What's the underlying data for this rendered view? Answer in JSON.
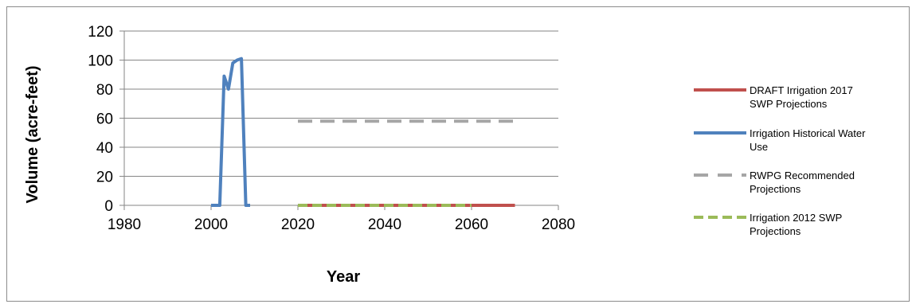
{
  "chart_data": {
    "type": "line",
    "title": "",
    "xlabel": "Year",
    "ylabel": "Volume (acre-feet)",
    "xlim": [
      1980,
      2080
    ],
    "ylim": [
      0,
      120
    ],
    "x_ticks": [
      "1980",
      "2000",
      "2020",
      "2040",
      "2060",
      "2080"
    ],
    "y_ticks": [
      "0",
      "20",
      "40",
      "60",
      "80",
      "100",
      "120"
    ],
    "grid": "horizontal",
    "legend_position": "right",
    "series": [
      {
        "name": "DRAFT Irrigation 2017 SWP Projections",
        "legend_lines": [
          "DRAFT Irrigation 2017",
          "SWP Projections"
        ],
        "color": "#c0504d",
        "style": "solid",
        "x": [
          2020,
          2030,
          2040,
          2050,
          2060,
          2070
        ],
        "y": [
          0,
          0,
          0,
          0,
          0,
          0
        ]
      },
      {
        "name": "Irrigation Historical Water Use",
        "legend_lines": [
          "Irrigation Historical Water",
          "Use"
        ],
        "color": "#4f81bd",
        "style": "solid",
        "x": [
          2000,
          2001,
          2002,
          2003,
          2004,
          2005,
          2006,
          2007,
          2008,
          2009
        ],
        "y": [
          0,
          0,
          0,
          89,
          80,
          98,
          100,
          101,
          0,
          0
        ]
      },
      {
        "name": "RWPG Recommended Projections",
        "legend_lines": [
          "RWPG Recommended",
          "Projections"
        ],
        "color": "#a6a6a6",
        "style": "dashed",
        "x": [
          2020,
          2030,
          2040,
          2050,
          2060,
          2070
        ],
        "y": [
          58,
          58,
          58,
          58,
          58,
          58
        ]
      },
      {
        "name": "Irrigation 2012 SWP Projections",
        "legend_lines": [
          "Irrigation 2012 SWP",
          "Projections"
        ],
        "color": "#9bbb59",
        "style": "dashed",
        "x": [
          2020,
          2030,
          2040,
          2050,
          2060
        ],
        "y": [
          0,
          0,
          0,
          0,
          0
        ]
      }
    ]
  }
}
